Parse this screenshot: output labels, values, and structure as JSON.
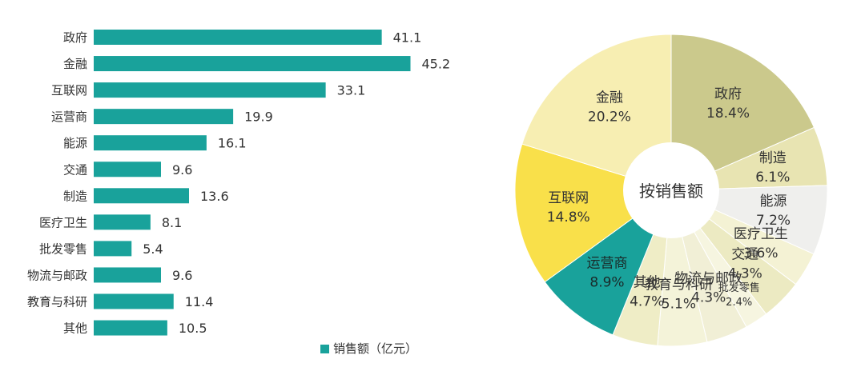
{
  "chart_data": [
    {
      "type": "bar",
      "orientation": "horizontal",
      "categories": [
        "政府",
        "金融",
        "互联网",
        "运营商",
        "能源",
        "交通",
        "制造",
        "医疗卫生",
        "批发零售",
        "物流与邮政",
        "教育与科研",
        "其他"
      ],
      "values": [
        41.1,
        45.2,
        33.1,
        19.9,
        16.1,
        9.6,
        13.6,
        8.1,
        5.4,
        9.6,
        11.4,
        10.5
      ],
      "value_labels": [
        "41.1",
        "45.2",
        "33.1",
        "19.9",
        "16.1",
        "9.6",
        "13.6",
        "8.1",
        "5.4",
        "9.6",
        "11.4",
        "10.5"
      ],
      "xlim": [
        0,
        47
      ],
      "legend": {
        "label": "销售额（亿元）",
        "placement": "bottom"
      },
      "colors": {
        "bar": "#19a29b",
        "label": "#333333"
      },
      "grid": false
    },
    {
      "type": "pie",
      "style": "donut",
      "center_label": "按销售额",
      "slices": [
        {
          "name": "政府",
          "percent_label": "18.4%",
          "value": 18.4,
          "color": "#cbc98c"
        },
        {
          "name": "制造",
          "percent_label": "6.1%",
          "value": 6.1,
          "color": "#e8e4b2"
        },
        {
          "name": "能源",
          "percent_label": "7.2%",
          "value": 7.2,
          "color": "#efefed"
        },
        {
          "name": "医疗卫生",
          "percent_label": "3.6%",
          "value": 3.6,
          "color": "#f4f2d4"
        },
        {
          "name": "交通",
          "percent_label": "4.3%",
          "value": 4.3,
          "color": "#eceac2"
        },
        {
          "name": "批发零售",
          "percent_label": "2.4%",
          "value": 2.4,
          "color": "#f6f5e0"
        },
        {
          "name": "物流与邮政",
          "percent_label": "4.3%",
          "value": 4.3,
          "color": "#f1efd6"
        },
        {
          "name": "教育与科研",
          "percent_label": "5.1%",
          "value": 5.1,
          "color": "#f4f3d9"
        },
        {
          "name": "其他",
          "percent_label": "4.7%",
          "value": 4.7,
          "color": "#efedc6"
        },
        {
          "name": "运营商",
          "percent_label": "8.9%",
          "value": 8.9,
          "color": "#19a29b"
        },
        {
          "name": "互联网",
          "percent_label": "14.8%",
          "value": 14.8,
          "color": "#f9e04a"
        },
        {
          "name": "金融",
          "percent_label": "20.2%",
          "value": 20.2,
          "color": "#f7eeb2"
        }
      ]
    }
  ]
}
